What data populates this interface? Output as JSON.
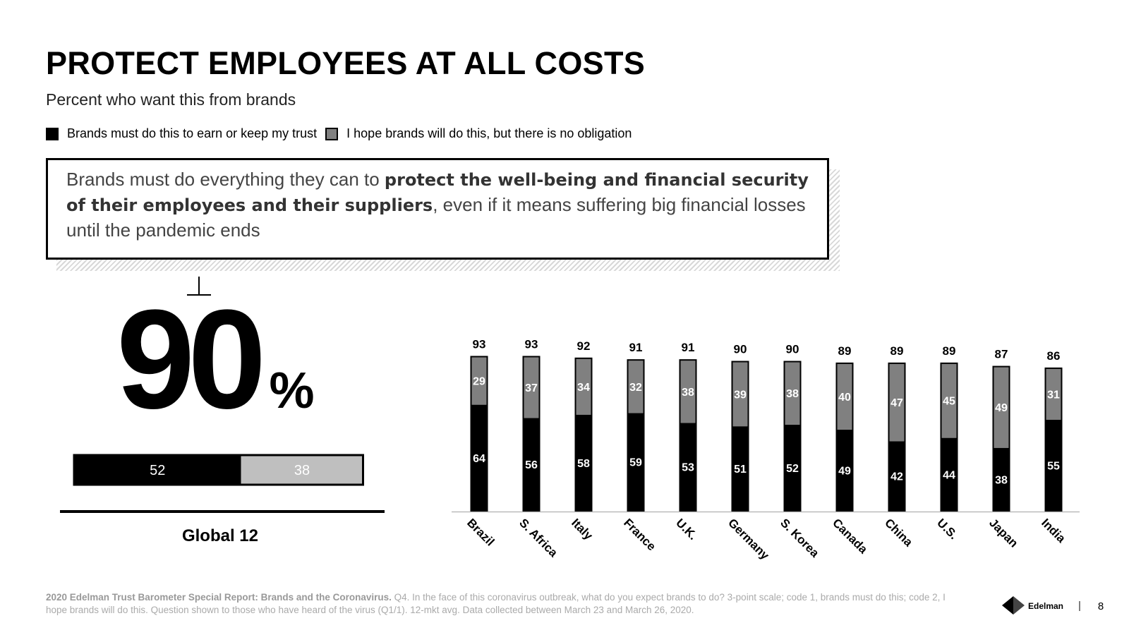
{
  "title": "PROTECT EMPLOYEES AT ALL COSTS",
  "subtitle": "Percent who want this from brands",
  "statement": {
    "parts": [
      {
        "text": "Brands must do everything they can to ",
        "bold": false
      },
      {
        "text": "protect the well-being and financial security of their employees and their suppliers",
        "bold": true
      },
      {
        "text": ", even if it means suffering big financial losses until the pandemic ends",
        "bold": false
      }
    ]
  },
  "chart_data": [
    {
      "type": "hbar-stacked",
      "categories": [
        "Global 12"
      ],
      "totals": [
        90
      ],
      "total_labels": [
        "90%"
      ],
      "series": [
        {
          "color": "#000000",
          "values": [
            52
          ]
        },
        {
          "color": "#bfbfbf",
          "values": [
            38
          ]
        }
      ]
    },
    {
      "type": "bar-stacked",
      "categories": [
        "Brazil",
        "S. Africa",
        "Italy",
        "France",
        "U.K.",
        "Germany",
        "S. Korea",
        "Canada",
        "China",
        "U.S.",
        "Japan",
        "India"
      ],
      "totals": [
        93,
        93,
        92,
        91,
        91,
        90,
        90,
        89,
        89,
        89,
        87,
        86
      ],
      "series": [
        {
          "name": "Brands must do this to earn or keep my trust",
          "color": "#000000",
          "values": [
            64,
            56,
            58,
            59,
            53,
            51,
            52,
            49,
            42,
            44,
            38,
            55
          ]
        },
        {
          "name": "I hope brands will do this, but there is no obligation",
          "color": "#808080",
          "values": [
            29,
            37,
            34,
            32,
            38,
            39,
            38,
            40,
            47,
            45,
            49,
            31
          ]
        }
      ]
    }
  ],
  "footnote": {
    "source": "2020 Edelman Trust Barometer Special Report: Brands and the Coronavirus.",
    "text": " Q4. In the face of this coronavirus outbreak, what do you expect brands to do? 3-point scale; code 1, brands must do this; code 2, I hope brands will do this. Question shown to those who have heard of the virus (Q1/1). 12-mkt avg. Data collected between March 23 and March 26, 2020."
  },
  "logo": "Edelman",
  "page_number": 8
}
